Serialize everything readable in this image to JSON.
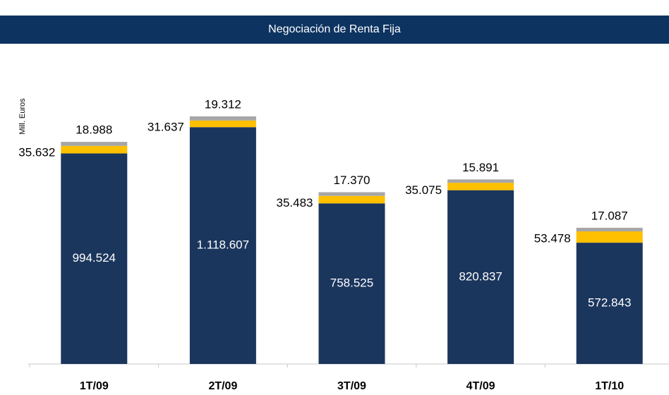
{
  "chart_data": {
    "type": "stacked_bar",
    "title": "Negociación de Renta Fija",
    "y_label": "Mill. Euros",
    "categories": [
      "1T/09",
      "2T/09",
      "3T/09",
      "4T/09",
      "1T/10"
    ],
    "series": [
      {
        "color": "#1b365d",
        "values": [
          994524,
          1118607,
          758525,
          820837,
          572843
        ],
        "value_labels": [
          "994.524",
          "1.118.607",
          "758.525",
          "820.837",
          "572.843"
        ]
      },
      {
        "color": "#ffc000",
        "values": [
          35632,
          31637,
          35483,
          35075,
          53478
        ],
        "value_labels": [
          "35.632",
          "31.637",
          "35.483",
          "35.075",
          "53.478"
        ]
      },
      {
        "color": "#a6a6a6",
        "values": [
          18988,
          19312,
          17370,
          15891,
          17087
        ],
        "value_labels": [
          "18.988",
          "19.312",
          "17.370",
          "15.891",
          "17.087"
        ]
      }
    ]
  }
}
